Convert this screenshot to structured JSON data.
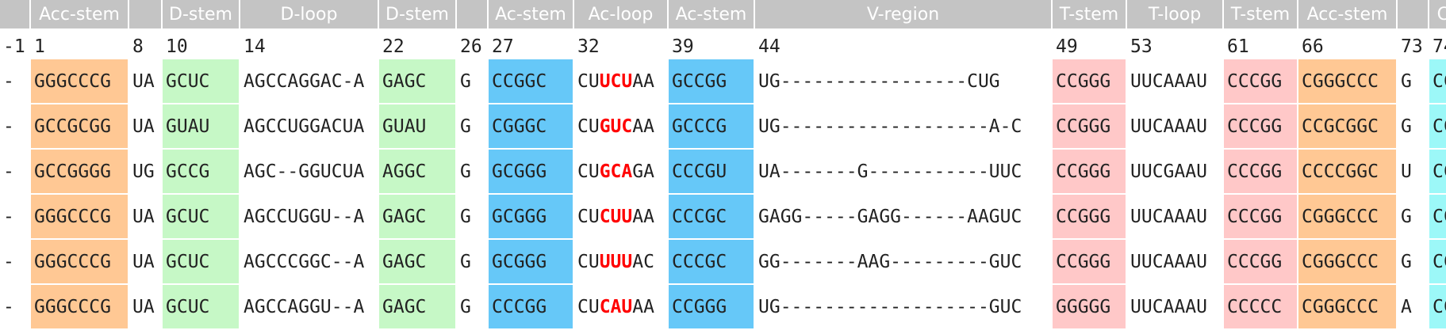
{
  "colors": {
    "header_bg": "#c4c4c4",
    "acceptor_stem": "#ffc894",
    "d_stem": "#c6f8c6",
    "anticodon_stem": "#66c8f8",
    "t_stem": "#ffc8c8",
    "cca": "#9cf8f8",
    "anticodon_text": "#ff0000"
  },
  "headers": [
    "",
    "Acc-stem",
    "",
    "D-stem",
    "D-loop",
    "D-stem",
    "",
    "Ac-stem",
    "Ac-loop",
    "Ac-stem",
    "V-region",
    "T-stem",
    "T-loop",
    "T-stem",
    "Acc-stem",
    "",
    "CCA"
  ],
  "positions": [
    "-1",
    "1",
    "8",
    "10",
    "14",
    "22",
    "26",
    "27",
    "32",
    "39",
    "44",
    "49",
    "53",
    "61",
    "66",
    "73",
    "74"
  ],
  "sequences": [
    {
      "cells": [
        "-",
        "GGGCCCG",
        "UA",
        "GCUC",
        "AGCCAGGAC-A",
        "GAGC",
        "G",
        "CCGGC",
        "",
        "GCCGG",
        "UG-----------------CUG",
        "CCGGG",
        "UUCAAAU",
        "CCCGG",
        "CGGGCCC",
        "G",
        "CCA"
      ],
      "loop": {
        "pre": "CU",
        "anticodon": "UCU",
        "post": "AA"
      }
    },
    {
      "cells": [
        "-",
        "GCCGCGG",
        "UA",
        "GUAU",
        "AGCCUGGACUA",
        "GUAU",
        "G",
        "CGGGC",
        "",
        "GCCCG",
        "UG-------------------A-C",
        "CCGGG",
        "UUCAAAU",
        "CCCGG",
        "CCGCGGC",
        "G",
        "CCA"
      ],
      "loop": {
        "pre": "CU",
        "anticodon": "GUC",
        "post": "AA"
      }
    },
    {
      "cells": [
        "-",
        "GCCGGGG",
        "UG",
        "GCCG",
        "AGC--GGUCUA",
        "AGGC",
        "G",
        "GCGGG",
        "",
        "CCCGU",
        "UA-------G-----------UUC",
        "CCGGG",
        "UUCGAAU",
        "CCCGG",
        "CCCCGGC",
        "U",
        "CCA"
      ],
      "loop": {
        "pre": "CU",
        "anticodon": "GCA",
        "post": "GA"
      }
    },
    {
      "cells": [
        "-",
        "GGGCCCG",
        "UA",
        "GCUC",
        "AGCCUGGU--A",
        "GAGC",
        "G",
        "GCGGG",
        "",
        "CCCGC",
        "GAGG-----GAGG------AAGUC",
        "CCGGG",
        "UUCAAAU",
        "CCCGG",
        "CGGGCCC",
        "G",
        "CCA"
      ],
      "loop": {
        "pre": "CU",
        "anticodon": "CUU",
        "post": "AA"
      }
    },
    {
      "cells": [
        "-",
        "GGGCCCG",
        "UA",
        "GCUC",
        "AGCCCGGC--A",
        "GAGC",
        "G",
        "GCGGG",
        "",
        "CCCGC",
        "GG-------AAG---------GUC",
        "CCGGG",
        "UUCAAAU",
        "CCCGG",
        "CGGGCCC",
        "G",
        "CCA"
      ],
      "loop": {
        "pre": "CU",
        "anticodon": "UUU",
        "post": "AC"
      }
    },
    {
      "cells": [
        "-",
        "GGGCCCG",
        "UA",
        "GCUC",
        "AGCCAGGU--A",
        "GAGC",
        "G",
        "CCCGG",
        "",
        "CCGGG",
        "UG-------------------GUC",
        "GGGGG",
        "UUCAAAU",
        "CCCCC",
        "CGGGCCC",
        "A",
        "CCA"
      ],
      "loop": {
        "pre": "CU",
        "anticodon": "CAU",
        "post": "AA"
      }
    }
  ]
}
